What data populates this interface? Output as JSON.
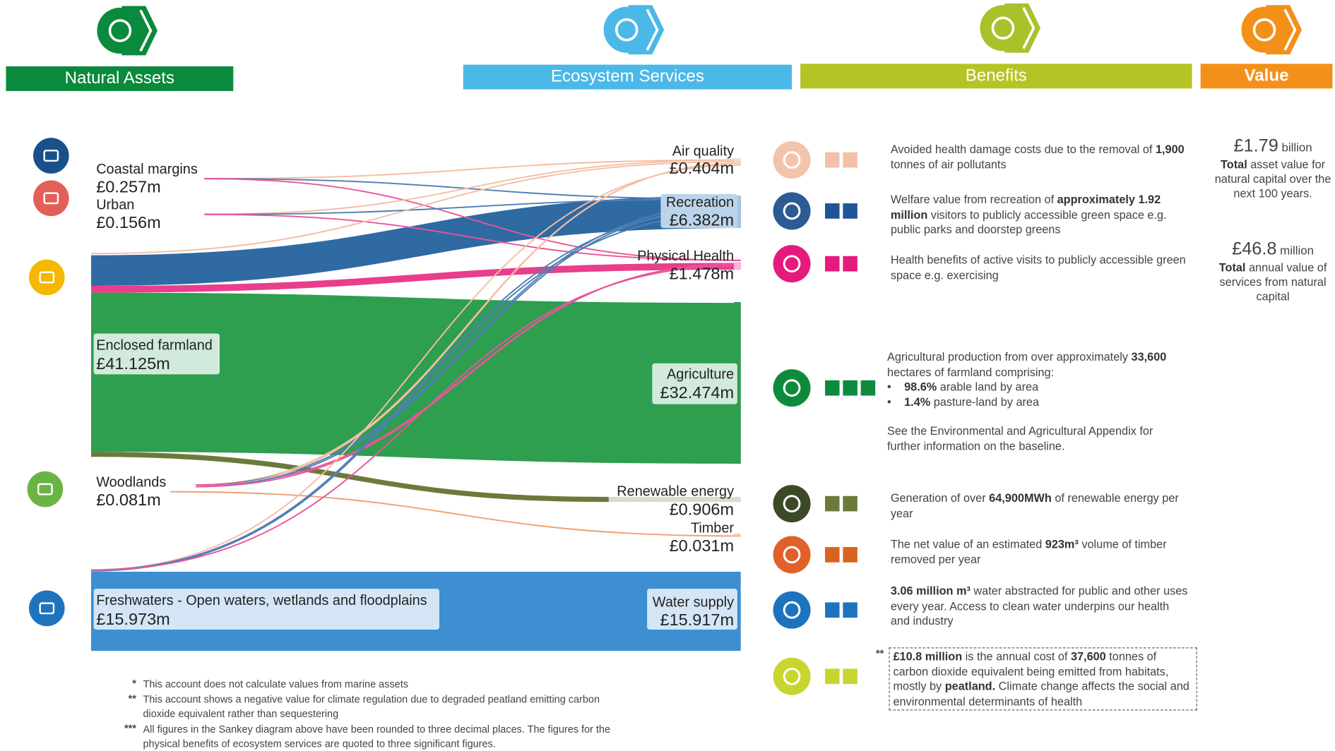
{
  "headers": [
    "Natural Assets",
    "Ecosystem Services",
    "Benefits",
    "Value"
  ],
  "sources": [
    {
      "label": "Coastal margins",
      "value": "£0.257m"
    },
    {
      "label": "Urban",
      "value": "£0.156m"
    },
    {
      "label": "Enclosed farmland",
      "value": "£41.125m"
    },
    {
      "label": "Woodlands",
      "value": "£0.081m"
    },
    {
      "label": "Freshwaters - Open waters, wetlands and floodplains",
      "value": "£15.973m"
    }
  ],
  "services": [
    {
      "label": "Air quality",
      "value": "£0.404m"
    },
    {
      "label": "Recreation",
      "value": "£6.382m"
    },
    {
      "label": "Physical Health",
      "value": "£1.478m"
    },
    {
      "label": "Agriculture",
      "value": "£32.474m"
    },
    {
      "label": "Renewable energy",
      "value": "£0.906m"
    },
    {
      "label": "Timber",
      "value": "£0.031m"
    },
    {
      "label": "Water supply",
      "value": "£15.917m"
    }
  ],
  "benefits": [
    {
      "icon": "#f3c4ab",
      "color": "#f2c1a8",
      "squares": 2,
      "blocks": [
        {
          "runs": [
            "Avoided health damage costs due to the removal of ",
            {
              "text": "1,900",
              "bold": true
            },
            " tonnes of air pollutants"
          ]
        }
      ]
    },
    {
      "icon": "#2c5b94",
      "color": "#1f5596",
      "squares": 2,
      "blocks": [
        {
          "runs": [
            "Welfare value from recreation of ",
            {
              "text": "approximately 1.92 million",
              "bold": true
            },
            " visitors to publicly accessible green space e.g. public parks and doorstep greens"
          ]
        }
      ]
    },
    {
      "icon": "#e6197d",
      "color": "#e6197d",
      "squares": 2,
      "blocks": [
        {
          "runs": [
            "Health benefits of active visits to publicly accessible green space e.g. exercising"
          ]
        }
      ]
    },
    {
      "icon": "#0e8a3c",
      "color": "#0e8a3c",
      "squares": 3,
      "blocks": [
        {
          "runs": [
            "Agricultural production from over approximately ",
            {
              "text": "33,600",
              "bold": true
            },
            " hectares of farmland comprising:"
          ]
        },
        {
          "bullet": true,
          "runs": [
            {
              "text": "98.6%",
              "bold": true
            },
            " arable land by area"
          ]
        },
        {
          "bullet": true,
          "runs": [
            {
              "text": "1.4%",
              "bold": true
            },
            " pasture-land by area"
          ]
        },
        {
          "gap": true,
          "runs": [
            "See the Environmental and Agricultural Appendix for further information on the baseline."
          ]
        }
      ]
    },
    {
      "icon": "#3b4a26",
      "color": "#6b7a3a",
      "squares": 2,
      "blocks": [
        {
          "runs": [
            "Generation of over ",
            {
              "text": "64,900MWh",
              "bold": true
            },
            " of renewable energy per year"
          ]
        }
      ]
    },
    {
      "icon": "#e0622a",
      "color": "#d9621f",
      "squares": 2,
      "blocks": [
        {
          "runs": [
            "The net value of an estimated ",
            {
              "text": "923m³",
              "bold": true
            },
            " volume of timber removed per year"
          ]
        }
      ]
    },
    {
      "icon": "#1e73be",
      "color": "#1e73be",
      "squares": 2,
      "blocks": [
        {
          "runs": [
            {
              "text": "3.06 million m³",
              "bold": true
            },
            " water abstracted for public and other uses every year. Access to clean water underpins our health and industry"
          ]
        }
      ]
    },
    {
      "icon": "#c8d531",
      "color": "#c8d531",
      "squares": 2,
      "mark": "**",
      "blocks": [
        {
          "runs": [
            {
              "text": "£10.8 million",
              "bold": true
            },
            " is the annual cost of ",
            {
              "text": "37,600",
              "bold": true
            },
            " tonnes of carbon dioxide equivalent being emitted from habitats, mostly by ",
            {
              "text": "peatland.",
              "bold": true
            },
            " Climate change affects the social and environmental determinants of health"
          ]
        }
      ]
    }
  ],
  "values": [
    {
      "amount": "£1.79",
      "unit": "billion",
      "runs": [
        {
          "text": "Total",
          "bold": true
        },
        " asset value for natural capital over the next 100 years."
      ]
    },
    {
      "amount": "£46.8",
      "unit": "million",
      "runs": [
        {
          "text": "Total",
          "bold": true
        },
        " annual value of services from natural capital"
      ]
    }
  ],
  "footnotes": [
    {
      "mark": "*",
      "text": "This account does not calculate values from marine assets"
    },
    {
      "mark": "**",
      "text": "This account shows a negative value for climate regulation due to degraded peatland emitting carbon dioxide equivalent rather than sequestering"
    },
    {
      "mark": "***",
      "text": "All figures in the Sankey diagram above have been rounded to three decimal places. The figures for the physical benefits of ecosystem services are quoted to three significant figures."
    }
  ]
}
